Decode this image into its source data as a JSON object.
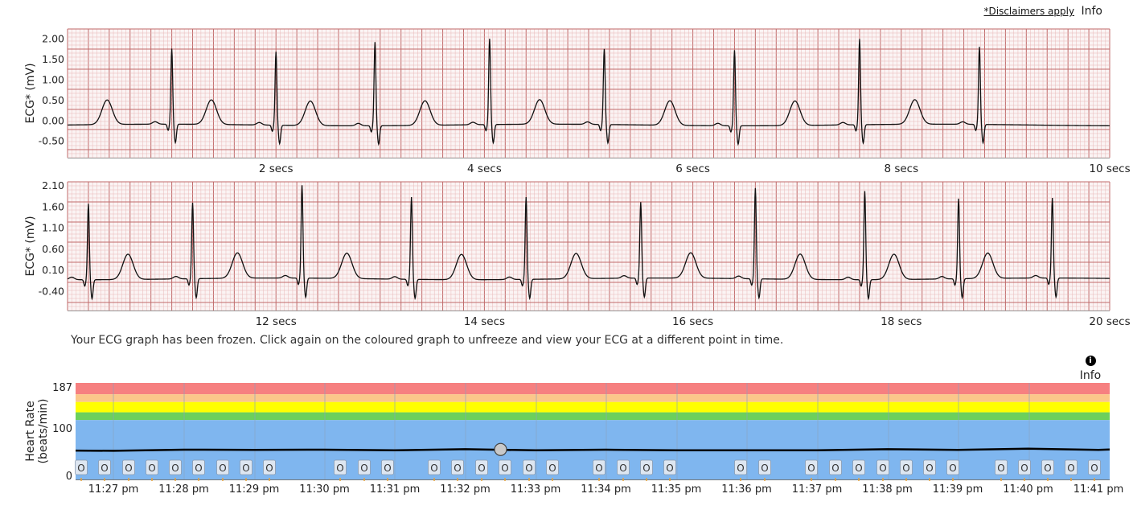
{
  "header": {
    "disclaimer": "*Disclaimers apply",
    "info": "Info"
  },
  "ecg1": {
    "ylabel": "ECG* (mV)",
    "yticks": [
      "2.00",
      "1.50",
      "1.00",
      "0.50",
      "0.00",
      "-0.50"
    ],
    "xticks": [
      "2 secs",
      "4 secs",
      "6 secs",
      "8 secs",
      "10 secs"
    ]
  },
  "ecg2": {
    "ylabel": "ECG* (mV)",
    "yticks": [
      "2.10",
      "1.60",
      "1.10",
      "0.60",
      "0.10",
      "-0.40"
    ],
    "xticks": [
      "12 secs",
      "14 secs",
      "16 secs",
      "18 secs",
      "20 secs"
    ]
  },
  "frozen_message": "Your ECG graph has been frozen. Click again on the coloured graph to unfreeze and view your ECG at a different point in time.",
  "hr_info": "Info",
  "hr": {
    "ylabel_line1": "Heart Rate",
    "ylabel_line2": "(beats/min)",
    "yticks": [
      "187",
      "100",
      "0"
    ],
    "xticks": [
      "11:27 pm",
      "11:28 pm",
      "11:29 pm",
      "11:30 pm",
      "11:31 pm",
      "11:32 pm",
      "11:33 pm",
      "11:34 pm",
      "11:35 pm",
      "11:36 pm",
      "11:37 pm",
      "11:38 pm",
      "11:39 pm",
      "11:40 pm",
      "11:41 pm"
    ],
    "marker_label": "O",
    "zone_colors": [
      "#f68080",
      "#fbc78a",
      "#ffff00",
      "#6cd05c",
      "#7fb6ef"
    ],
    "line_color": "#000000"
  },
  "chart_data": [
    {
      "type": "line",
      "xlabel": "",
      "ylabel": "ECG* (mV)",
      "xlim": [
        0,
        10
      ],
      "ylim": [
        -0.9,
        2.25
      ],
      "grid": true,
      "beats_s": [
        1.0,
        2.0,
        2.95,
        4.05,
        5.15,
        6.4,
        7.6,
        8.75
      ],
      "r_peak_mv": [
        1.75,
        1.7,
        1.95,
        2.0,
        1.75,
        1.75,
        2.0,
        1.8
      ]
    },
    {
      "type": "line",
      "xlabel": "",
      "ylabel": "ECG* (mV)",
      "xlim": [
        10,
        20
      ],
      "ylim": [
        -0.85,
        2.2
      ],
      "grid": true,
      "beats_s": [
        10.2,
        11.2,
        12.25,
        13.3,
        14.4,
        15.5,
        16.6,
        17.65,
        18.55,
        19.45
      ],
      "r_peak_mv": [
        1.7,
        1.7,
        2.1,
        1.85,
        1.85,
        1.7,
        2.05,
        2.0,
        1.8,
        1.8
      ]
    },
    {
      "type": "line",
      "xlabel": "",
      "ylabel": "Heart Rate (beats/min)",
      "ylim": [
        0,
        187
      ],
      "zones": [
        187,
        165,
        150,
        130,
        115,
        0
      ],
      "x": [
        "11:27 pm",
        "11:28 pm",
        "11:29 pm",
        "11:30 pm",
        "11:31 pm",
        "11:32 pm",
        "11:33 pm",
        "11:34 pm",
        "11:35 pm",
        "11:36 pm",
        "11:37 pm",
        "11:38 pm",
        "11:39 pm",
        "11:40 pm",
        "11:41 pm"
      ],
      "series": [
        {
          "values": [
            56,
            57,
            58,
            57,
            57,
            58,
            57,
            57,
            57,
            56,
            57,
            58,
            58,
            59,
            58
          ]
        }
      ],
      "selected": "11:32 pm"
    }
  ]
}
